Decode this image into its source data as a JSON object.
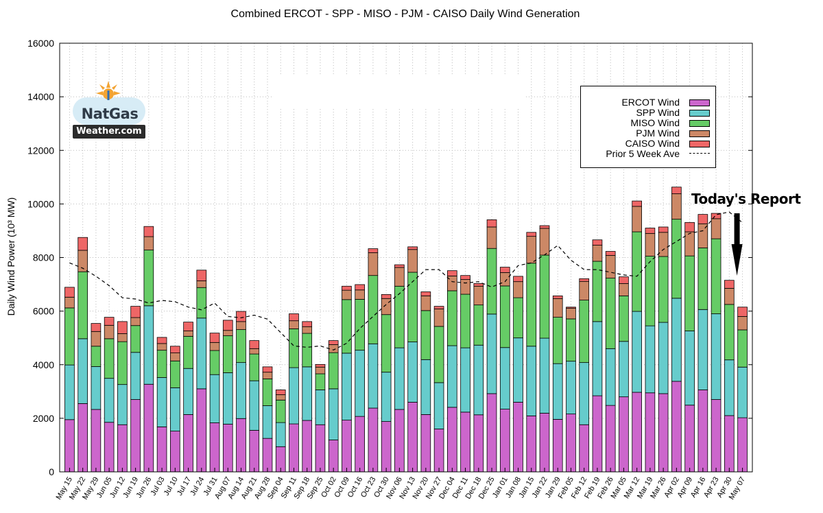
{
  "chart_data": {
    "type": "bar",
    "stacked": true,
    "title": "Combined ERCOT - SPP - MISO - PJM - CAISO Daily Wind Generation",
    "ylabel": "Daily Wind Power (10³ MW)",
    "xlabel": "",
    "ylim": [
      0,
      16000
    ],
    "yticks": [
      0,
      2000,
      4000,
      6000,
      8000,
      10000,
      12000,
      14000,
      16000
    ],
    "grid": true,
    "legend_position": "top-right",
    "categories": [
      "May 15",
      "May 22",
      "May 29",
      "Jun 05",
      "Jun 12",
      "Jun 19",
      "Jun 26",
      "Jul 03",
      "Jul 10",
      "Jul 17",
      "Jul 24",
      "Jul 31",
      "Aug 07",
      "Aug 14",
      "Aug 21",
      "Aug 28",
      "Sep 04",
      "Sep 11",
      "Sep 18",
      "Sep 25",
      "Oct 02",
      "Oct 09",
      "Oct 16",
      "Oct 23",
      "Oct 30",
      "Nov 06",
      "Nov 13",
      "Nov 20",
      "Nov 27",
      "Dec 04",
      "Dec 11",
      "Dec 18",
      "Dec 25",
      "Jan 01",
      "Jan 08",
      "Jan 15",
      "Jan 22",
      "Jan 29",
      "Feb 05",
      "Feb 12",
      "Feb 19",
      "Feb 26",
      "Mar 05",
      "Mar 12",
      "Mar 19",
      "Mar 26",
      "Apr 02",
      "Apr 09",
      "Apr 16",
      "Apr 23",
      "Apr 30",
      "May 07"
    ],
    "series": [
      {
        "name": "ERCOT Wind",
        "color": "#cc66cc",
        "values": [
          1950,
          2550,
          2330,
          1850,
          1760,
          2700,
          3270,
          1680,
          1520,
          2140,
          3100,
          1830,
          1780,
          1990,
          1550,
          1250,
          940,
          1790,
          1920,
          1760,
          1190,
          1930,
          2070,
          2380,
          1880,
          2330,
          2600,
          2140,
          1600,
          2410,
          2230,
          2130,
          2920,
          2340,
          2600,
          2090,
          2190,
          1960,
          2160,
          1760,
          2840,
          2480,
          2800,
          2970,
          2950,
          2920,
          3380,
          2490,
          3060,
          2700,
          2100,
          2020
        ]
      },
      {
        "name": "SPP Wind",
        "color": "#66cccc",
        "values": [
          2040,
          2420,
          1600,
          1640,
          1500,
          1760,
          2930,
          1840,
          1620,
          1720,
          2640,
          1800,
          1920,
          2090,
          1850,
          1220,
          900,
          2100,
          2000,
          1300,
          1910,
          2500,
          2470,
          2400,
          1840,
          2300,
          2250,
          2050,
          1730,
          2300,
          2400,
          2600,
          2970,
          2300,
          2400,
          2600,
          2800,
          2080,
          1970,
          2320,
          2770,
          2120,
          2070,
          3020,
          2500,
          2660,
          3100,
          2770,
          3000,
          3200,
          2080,
          1890
        ]
      },
      {
        "name": "MISO Wind",
        "color": "#66cc66",
        "values": [
          2130,
          2500,
          760,
          1480,
          1600,
          1000,
          2080,
          1020,
          1000,
          1200,
          1140,
          900,
          1380,
          1230,
          1000,
          1000,
          840,
          1450,
          1250,
          600,
          1350,
          2000,
          1900,
          2550,
          2150,
          2300,
          2600,
          1830,
          2100,
          2050,
          2000,
          1500,
          2450,
          2300,
          1500,
          3100,
          3100,
          1730,
          1580,
          2330,
          2250,
          2630,
          1700,
          2970,
          2600,
          2460,
          2950,
          2800,
          2300,
          2800,
          2070,
          1390
        ]
      },
      {
        "name": "PJM Wind",
        "color": "#cc8866",
        "values": [
          400,
          800,
          550,
          500,
          300,
          300,
          500,
          250,
          300,
          200,
          250,
          300,
          200,
          300,
          200,
          250,
          200,
          300,
          250,
          250,
          300,
          350,
          350,
          850,
          600,
          700,
          850,
          550,
          650,
          550,
          550,
          700,
          800,
          500,
          600,
          1000,
          1000,
          700,
          400,
          700,
          600,
          850,
          460,
          950,
          850,
          900,
          950,
          900,
          900,
          750,
          600,
          500
        ]
      },
      {
        "name": "CAISO Wind",
        "color": "#ee6666",
        "values": [
          370,
          480,
          300,
          300,
          450,
          420,
          380,
          230,
          250,
          330,
          400,
          350,
          380,
          380,
          300,
          200,
          180,
          260,
          190,
          100,
          150,
          150,
          200,
          150,
          150,
          100,
          100,
          150,
          100,
          200,
          150,
          100,
          270,
          200,
          200,
          150,
          100,
          100,
          40,
          100,
          200,
          150,
          250,
          200,
          200,
          200,
          250,
          350,
          350,
          200,
          300,
          350
        ]
      },
      {
        "name": "Prior 5 Week Ave",
        "type": "line",
        "style": "dashed",
        "color": "#000000",
        "values": [
          7800,
          7600,
          7300,
          6950,
          6500,
          6450,
          6300,
          6400,
          6350,
          6150,
          6050,
          6300,
          5800,
          5750,
          5850,
          5700,
          5200,
          4700,
          4650,
          4700,
          4550,
          4800,
          5350,
          5800,
          6250,
          6650,
          7100,
          7550,
          7550,
          7100,
          7050,
          7100,
          6900,
          7100,
          7700,
          7800,
          8100,
          8450,
          7900,
          7550,
          7550,
          7450,
          7350,
          7300,
          7850,
          8300,
          8600,
          8900,
          9000,
          9600,
          9700,
          9300
        ]
      }
    ],
    "annotations": [
      "Today's Report"
    ]
  },
  "logo": {
    "name_line1": "NatGas",
    "name_line2": "Weather.com"
  },
  "colors": {
    "grid": "#bbbbbb",
    "axis": "#000000",
    "bar_outline": "#000000"
  }
}
